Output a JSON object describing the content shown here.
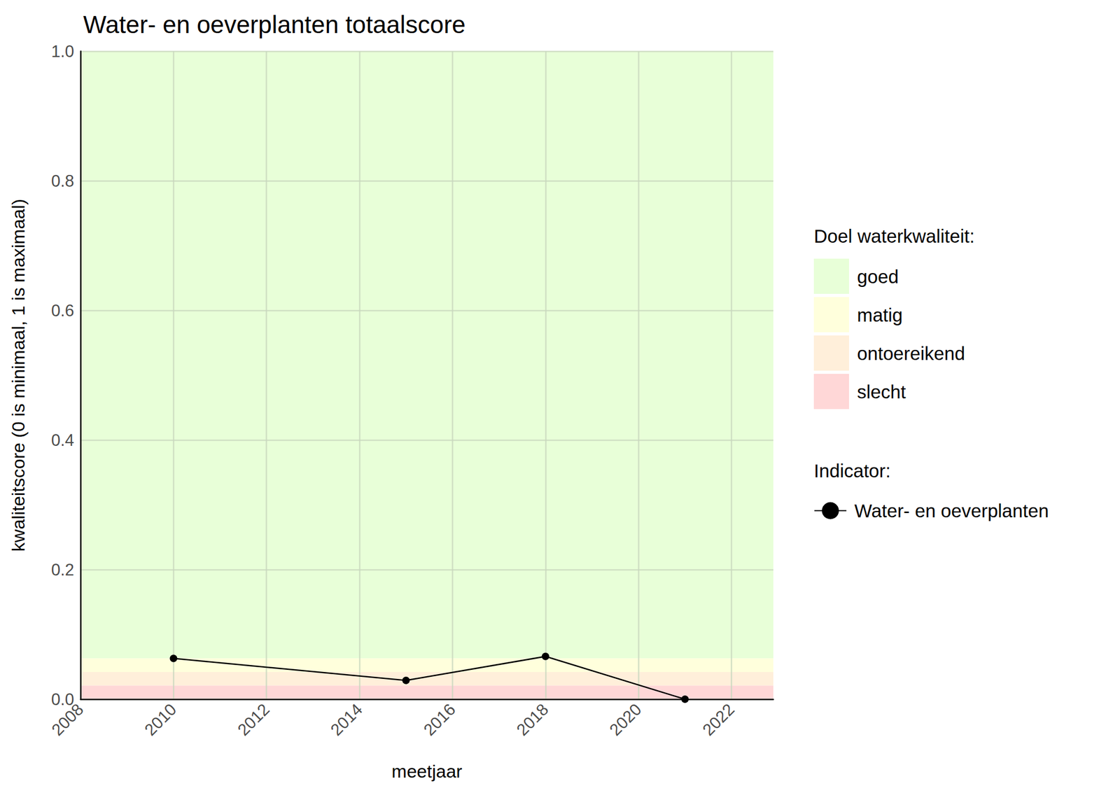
{
  "chart_data": {
    "type": "line",
    "title": "Water- en oeverplanten totaalscore",
    "x_label": "meetjaar",
    "y_label": "kwaliteitscore (0 is minimaal, 1 is maximaal)",
    "x": [
      2010,
      2015,
      2018,
      2021
    ],
    "series": [
      {
        "name": "Water- en oeverplanten",
        "color": "#000000",
        "marker": "circle",
        "values": [
          0.063,
          0.029,
          0.066,
          0
        ]
      }
    ],
    "xlim": [
      2008,
      2022.9
    ],
    "xticks": [
      2008,
      2010,
      2012,
      2014,
      2016,
      2018,
      2020,
      2022
    ],
    "ylim": [
      0,
      1
    ],
    "yticks": [
      {
        "value": 0,
        "label": "0.0"
      },
      0.2,
      0.4,
      0.6,
      0.8,
      {
        "value": 1,
        "label": "1.0"
      }
    ],
    "grid": true,
    "bands_title": "Doel waterkwaliteit:",
    "bands": [
      {
        "name": "goed",
        "from": 0.063,
        "to": 1,
        "color": "#e8ffd8"
      },
      {
        "name": "matig",
        "from": 0.042,
        "to": 0.063,
        "color": "#ffffdc"
      },
      {
        "name": "ontoereikend",
        "from": 0.021,
        "to": 0.042,
        "color": "#ffefda"
      },
      {
        "name": "slecht",
        "from": 0,
        "to": 0.021,
        "color": "#ffd7d7"
      }
    ],
    "series_legend_title": "Indicator:"
  }
}
